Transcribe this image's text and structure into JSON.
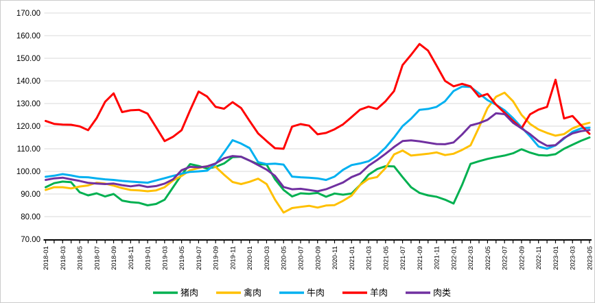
{
  "chart_data": {
    "type": "line",
    "title": "",
    "xlabel": "",
    "ylabel": "",
    "ylim": [
      70,
      170
    ],
    "ytick_step": 10,
    "ytick_format": "two_decimals",
    "grid": "horizontal",
    "legend_position": "bottom",
    "x_label_every_n_months": 2,
    "x": [
      "2018-01",
      "2018-02",
      "2018-03",
      "2018-04",
      "2018-05",
      "2018-06",
      "2018-07",
      "2018-08",
      "2018-09",
      "2018-10",
      "2018-11",
      "2018-12",
      "2019-01",
      "2019-02",
      "2019-03",
      "2019-04",
      "2019-05",
      "2019-06",
      "2019-07",
      "2019-08",
      "2019-09",
      "2019-10",
      "2019-11",
      "2019-12",
      "2020-01",
      "2020-02",
      "2020-03",
      "2020-04",
      "2020-05",
      "2020-06",
      "2020-07",
      "2020-08",
      "2020-09",
      "2020-10",
      "2020-11",
      "2020-12",
      "2021-01",
      "2021-02",
      "2021-03",
      "2021-04",
      "2021-05",
      "2021-06",
      "2021-07",
      "2021-08",
      "2021-09",
      "2021-10",
      "2021-11",
      "2021-12",
      "2022-01",
      "2022-02",
      "2022-03",
      "2022-04",
      "2022-05",
      "2022-06",
      "2022-07",
      "2022-08",
      "2022-09",
      "2022-10",
      "2022-11",
      "2022-12",
      "2023-01",
      "2023-02",
      "2023-03",
      "2023-04",
      "2023-05"
    ],
    "series": [
      {
        "name": "猪肉",
        "color": "#00B050",
        "values": [
          93.0,
          94.8,
          95.5,
          95.2,
          90.8,
          89.4,
          90.3,
          88.9,
          90.0,
          87.1,
          86.4,
          86.1,
          85.0,
          85.6,
          87.5,
          93.0,
          98.5,
          103.2,
          102.4,
          101.2,
          102.0,
          103.5,
          106.3,
          106.5,
          104.8,
          103.2,
          103.0,
          96.5,
          91.8,
          88.9,
          90.3,
          90.1,
          90.5,
          88.8,
          90.2,
          89.7,
          90.2,
          94.0,
          98.5,
          101.0,
          102.3,
          102.2,
          97.5,
          93.0,
          90.5,
          89.4,
          88.8,
          87.5,
          85.8,
          94.0,
          103.3,
          104.5,
          105.5,
          106.3,
          107.0,
          108.0,
          109.8,
          108.3,
          107.2,
          107.0,
          107.6,
          110.0,
          111.8,
          113.5,
          115.0
        ]
      },
      {
        "name": "禽肉",
        "color": "#FFC000",
        "values": [
          91.8,
          93.0,
          93.0,
          92.5,
          93.3,
          93.8,
          95.0,
          94.6,
          93.7,
          92.6,
          91.8,
          91.6,
          91.2,
          91.6,
          93.0,
          96.0,
          98.0,
          100.5,
          101.5,
          102.3,
          102.0,
          98.5,
          95.3,
          94.4,
          95.4,
          96.8,
          94.4,
          87.5,
          81.8,
          83.8,
          84.3,
          84.8,
          84.0,
          84.9,
          85.1,
          87.0,
          89.3,
          94.0,
          96.7,
          97.5,
          101.5,
          107.5,
          109.2,
          107.0,
          107.4,
          107.8,
          108.4,
          107.2,
          107.8,
          109.5,
          111.5,
          119.5,
          128.0,
          133.0,
          134.8,
          131.0,
          125.0,
          121.0,
          118.5,
          117.0,
          115.8,
          116.5,
          119.0,
          120.5,
          121.5
        ]
      },
      {
        "name": "牛肉",
        "color": "#00B0F0",
        "values": [
          97.6,
          98.1,
          98.8,
          98.2,
          97.5,
          97.4,
          96.9,
          96.5,
          96.2,
          95.8,
          95.5,
          95.2,
          95.0,
          96.0,
          97.0,
          98.0,
          99.0,
          99.8,
          100.0,
          100.3,
          103.3,
          108.4,
          113.8,
          112.3,
          110.3,
          104.1,
          103.2,
          103.4,
          103.0,
          97.7,
          97.4,
          97.2,
          96.9,
          96.2,
          97.7,
          100.7,
          102.8,
          103.5,
          104.5,
          107.0,
          110.5,
          115.0,
          120.0,
          123.3,
          127.2,
          127.6,
          128.5,
          131.0,
          135.5,
          137.5,
          137.3,
          134.5,
          131.5,
          129.5,
          127.0,
          123.5,
          119.5,
          115.5,
          111.0,
          110.0,
          111.5,
          114.5,
          117.5,
          119.0,
          119.3
        ]
      },
      {
        "name": "羊肉",
        "color": "#FF0000",
        "values": [
          122.3,
          121.0,
          120.7,
          120.6,
          119.9,
          118.2,
          123.5,
          130.8,
          134.5,
          126.2,
          127.0,
          127.2,
          125.5,
          119.5,
          113.4,
          115.3,
          118.2,
          127.0,
          135.3,
          133.1,
          128.5,
          127.7,
          130.6,
          128.0,
          122.3,
          116.8,
          113.4,
          110.2,
          110.0,
          119.8,
          120.9,
          120.2,
          116.4,
          117.0,
          118.6,
          120.8,
          124.0,
          127.3,
          128.6,
          127.6,
          131.0,
          135.5,
          147.0,
          151.5,
          156.3,
          153.4,
          146.8,
          140.0,
          137.6,
          138.7,
          137.6,
          133.0,
          134.2,
          129.5,
          125.9,
          122.3,
          119.0,
          125.2,
          127.3,
          128.5,
          140.5,
          123.4,
          124.5,
          120.4,
          116.6
        ]
      },
      {
        "name": "肉类",
        "color": "#7030A0",
        "values": [
          96.2,
          96.9,
          97.2,
          96.5,
          95.8,
          94.9,
          94.6,
          94.4,
          94.6,
          93.9,
          93.4,
          93.9,
          93.1,
          93.5,
          94.6,
          96.5,
          100.5,
          102.0,
          101.8,
          102.2,
          103.5,
          105.8,
          106.8,
          106.5,
          104.8,
          102.8,
          100.8,
          98.0,
          93.1,
          92.1,
          92.3,
          91.8,
          91.2,
          92.1,
          93.6,
          95.1,
          97.5,
          99.0,
          102.5,
          105.0,
          107.8,
          110.8,
          113.4,
          113.7,
          113.3,
          112.7,
          112.1,
          112.0,
          112.8,
          116.3,
          120.3,
          121.3,
          122.8,
          125.7,
          125.3,
          121.5,
          119.0,
          116.5,
          113.4,
          111.3,
          111.6,
          114.8,
          116.8,
          117.8,
          118.3
        ]
      }
    ]
  },
  "style": {
    "gridline_color": "#d9d9d9",
    "axis_color": "#000000",
    "background": "#ffffff"
  }
}
